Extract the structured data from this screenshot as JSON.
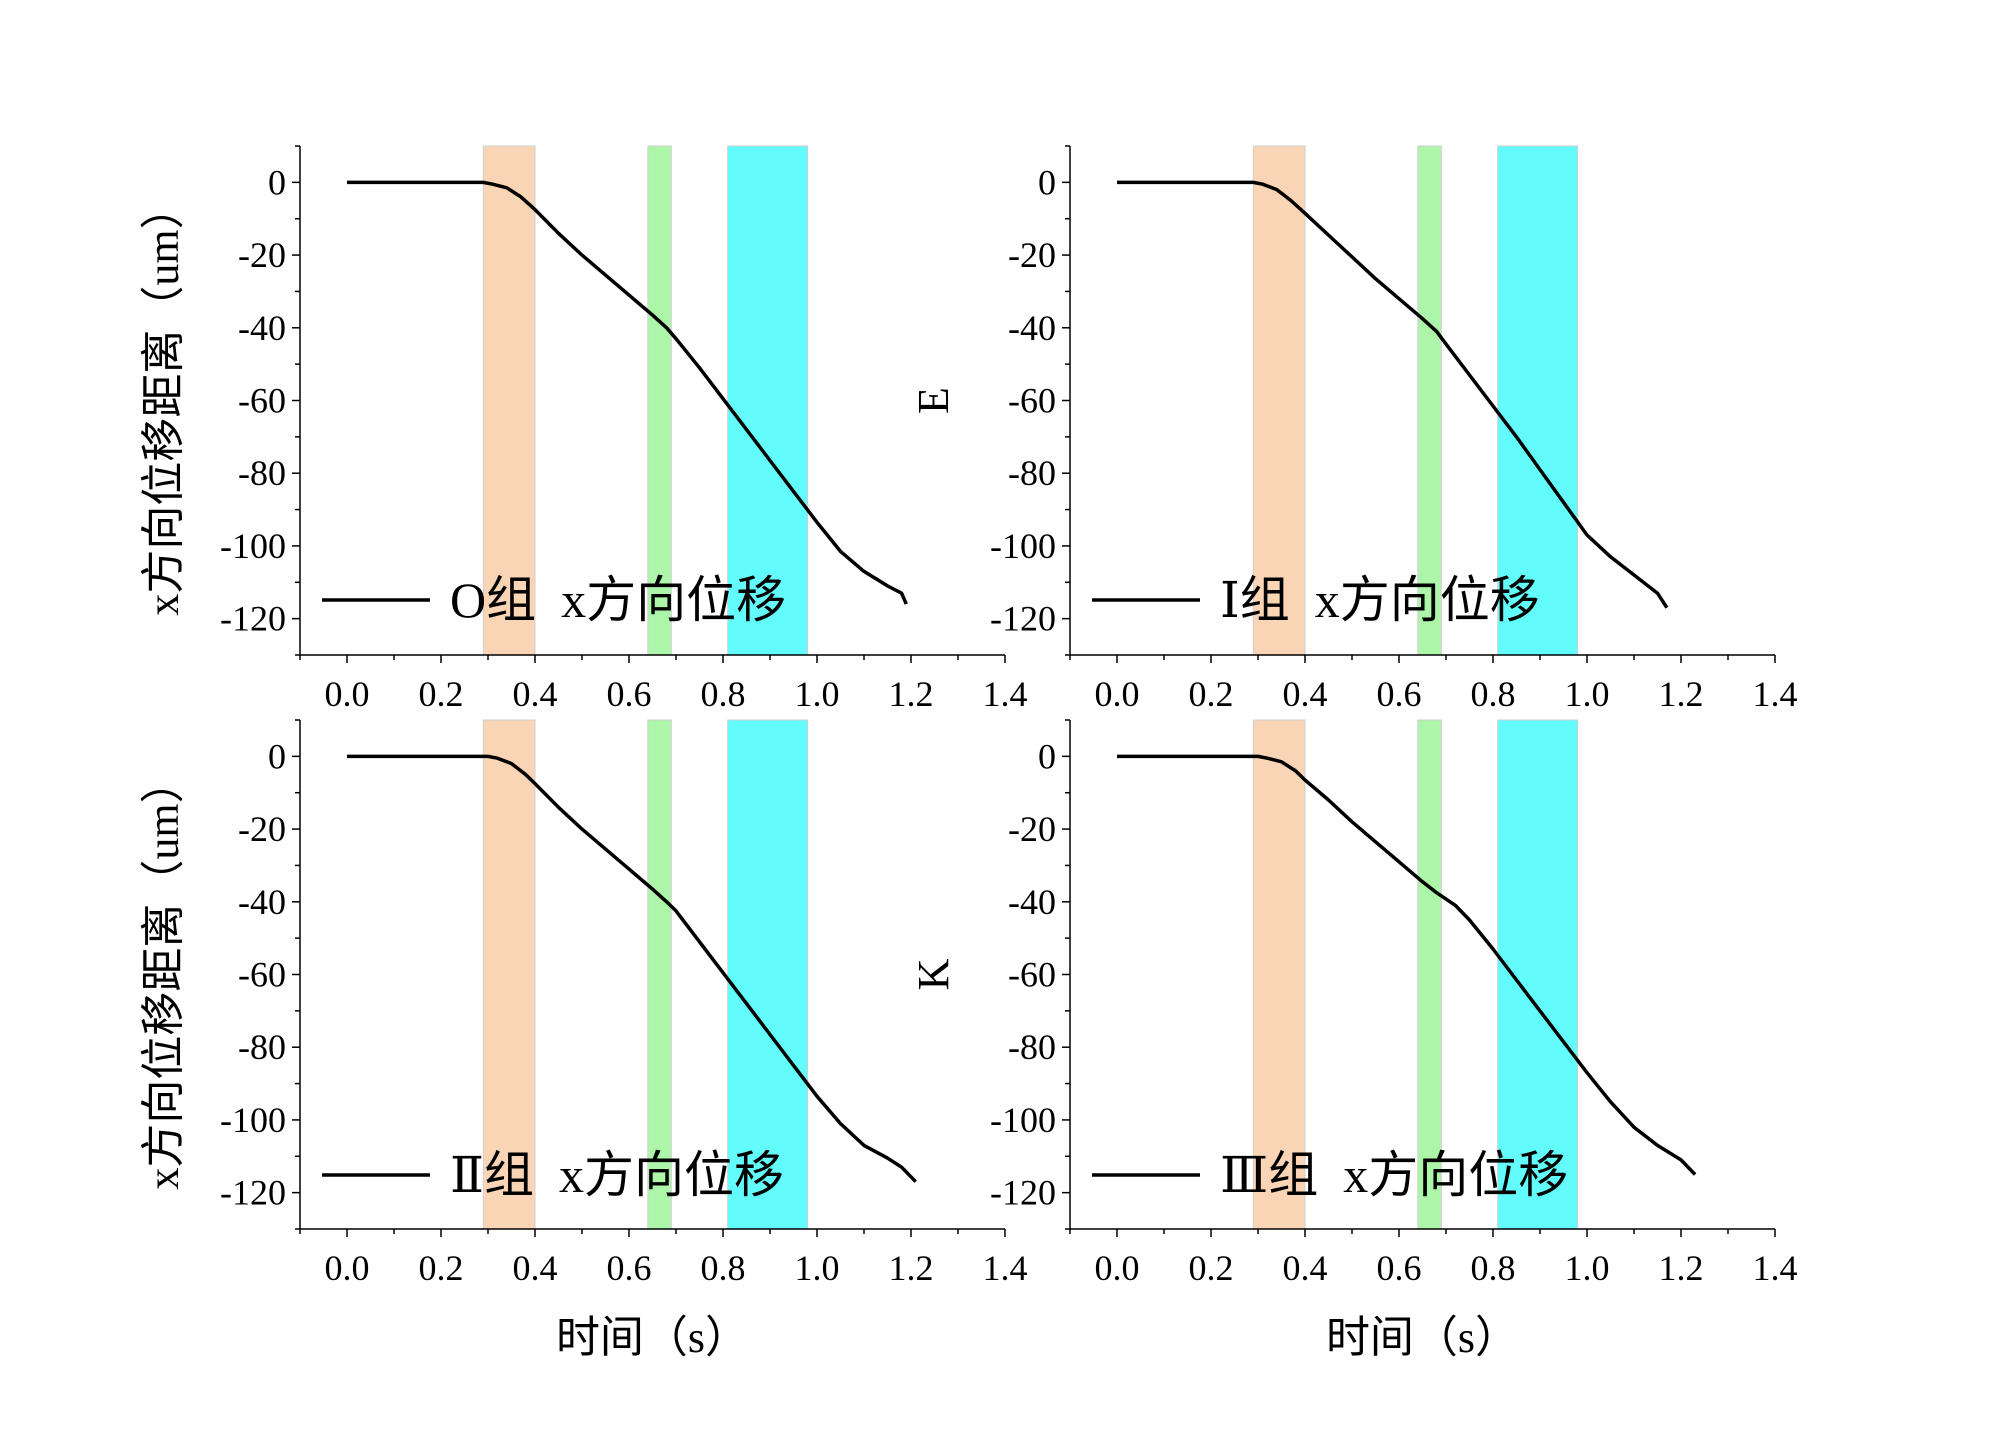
{
  "chart_data": [
    {
      "type": "line",
      "ylabel": "x方向位移距离（um）",
      "xlabel": "",
      "xlim": [
        -0.1,
        1.4
      ],
      "ylim": [
        -130,
        10
      ],
      "xticks": [
        "0.0",
        "0.2",
        "0.4",
        "0.6",
        "0.8",
        "1.0",
        "1.2",
        "1.4"
      ],
      "yticks": [
        "0",
        "-20",
        "-40",
        "-60",
        "-80",
        "-100",
        "-120"
      ],
      "legend_position": "bottom-left",
      "bands": [
        {
          "x": [
            0.29,
            0.4
          ],
          "color": "#f9d5b5"
        },
        {
          "x": [
            0.64,
            0.69
          ],
          "color": "#adf5a8"
        },
        {
          "x": [
            0.81,
            0.98
          ],
          "color": "#63fcfc"
        }
      ],
      "series": [
        {
          "name": "O组  x方向位移",
          "x": [
            0.0,
            0.1,
            0.2,
            0.29,
            0.31,
            0.34,
            0.37,
            0.4,
            0.45,
            0.5,
            0.55,
            0.6,
            0.65,
            0.68,
            0.7,
            0.75,
            0.8,
            0.85,
            0.9,
            0.95,
            1.0,
            1.05,
            1.1,
            1.15,
            1.18,
            1.19
          ],
          "y": [
            0,
            0,
            0,
            0,
            -0.5,
            -1.5,
            -4,
            -7.5,
            -14,
            -20,
            -25.5,
            -31,
            -36.5,
            -40,
            -43,
            -51,
            -59.5,
            -68,
            -76.5,
            -85,
            -93.5,
            -101.5,
            -107,
            -111,
            -113,
            -116
          ]
        }
      ]
    },
    {
      "type": "line",
      "ylabel": "E",
      "xlabel": "",
      "xlim": [
        -0.1,
        1.4
      ],
      "ylim": [
        -130,
        10
      ],
      "xticks": [
        "0.0",
        "0.2",
        "0.4",
        "0.6",
        "0.8",
        "1.0",
        "1.2",
        "1.4"
      ],
      "yticks": [
        "0",
        "-20",
        "-40",
        "-60",
        "-80",
        "-100",
        "-120"
      ],
      "legend_position": "bottom-left",
      "bands": [
        {
          "x": [
            0.29,
            0.4
          ],
          "color": "#f9d5b5"
        },
        {
          "x": [
            0.64,
            0.69
          ],
          "color": "#adf5a8"
        },
        {
          "x": [
            0.81,
            0.98
          ],
          "color": "#63fcfc"
        }
      ],
      "series": [
        {
          "name": "Ⅰ组  x方向位移",
          "x": [
            0.0,
            0.1,
            0.2,
            0.29,
            0.31,
            0.34,
            0.37,
            0.4,
            0.45,
            0.5,
            0.55,
            0.6,
            0.65,
            0.68,
            0.7,
            0.75,
            0.8,
            0.85,
            0.9,
            0.95,
            1.0,
            1.05,
            1.1,
            1.15,
            1.17
          ],
          "y": [
            0,
            0,
            0,
            0,
            -0.5,
            -2,
            -5,
            -8.5,
            -14.5,
            -20.5,
            -26.5,
            -32,
            -37.5,
            -41,
            -44.5,
            -53,
            -61.5,
            -70,
            -79,
            -88,
            -97,
            -103,
            -108,
            -113,
            -117
          ]
        }
      ]
    },
    {
      "type": "line",
      "ylabel": "x方向位移距离（um）",
      "xlabel": "时间（s）",
      "xlim": [
        -0.1,
        1.4
      ],
      "ylim": [
        -130,
        10
      ],
      "xticks": [
        "0.0",
        "0.2",
        "0.4",
        "0.6",
        "0.8",
        "1.0",
        "1.2",
        "1.4"
      ],
      "yticks": [
        "0",
        "-20",
        "-40",
        "-60",
        "-80",
        "-100",
        "-120"
      ],
      "legend_position": "bottom-left",
      "bands": [
        {
          "x": [
            0.29,
            0.4
          ],
          "color": "#f9d5b5"
        },
        {
          "x": [
            0.64,
            0.69
          ],
          "color": "#adf5a8"
        },
        {
          "x": [
            0.81,
            0.98
          ],
          "color": "#63fcfc"
        }
      ],
      "series": [
        {
          "name": "Ⅱ组  x方向位移",
          "x": [
            0.0,
            0.1,
            0.2,
            0.3,
            0.32,
            0.35,
            0.38,
            0.4,
            0.45,
            0.5,
            0.55,
            0.6,
            0.65,
            0.68,
            0.7,
            0.75,
            0.8,
            0.85,
            0.9,
            0.95,
            1.0,
            1.05,
            1.1,
            1.15,
            1.18,
            1.21
          ],
          "y": [
            0,
            0,
            0,
            0,
            -0.5,
            -2,
            -5,
            -7.5,
            -14,
            -20,
            -25.5,
            -31,
            -36.5,
            -40,
            -42.5,
            -51,
            -59.5,
            -68,
            -76.5,
            -85,
            -93.5,
            -101,
            -107,
            -110.5,
            -113,
            -117
          ]
        }
      ]
    },
    {
      "type": "line",
      "ylabel": "K",
      "xlabel": "时间（s）",
      "xlim": [
        -0.1,
        1.4
      ],
      "ylim": [
        -130,
        10
      ],
      "xticks": [
        "0.0",
        "0.2",
        "0.4",
        "0.6",
        "0.8",
        "1.0",
        "1.2",
        "1.4"
      ],
      "yticks": [
        "0",
        "-20",
        "-40",
        "-60",
        "-80",
        "-100",
        "-120"
      ],
      "legend_position": "bottom-left",
      "bands": [
        {
          "x": [
            0.29,
            0.4
          ],
          "color": "#f9d5b5"
        },
        {
          "x": [
            0.64,
            0.69
          ],
          "color": "#adf5a8"
        },
        {
          "x": [
            0.81,
            0.98
          ],
          "color": "#63fcfc"
        }
      ],
      "series": [
        {
          "name": "Ⅲ组  x方向位移",
          "x": [
            0.0,
            0.1,
            0.2,
            0.3,
            0.32,
            0.35,
            0.38,
            0.4,
            0.45,
            0.5,
            0.55,
            0.6,
            0.65,
            0.68,
            0.72,
            0.75,
            0.8,
            0.85,
            0.9,
            0.95,
            1.0,
            1.05,
            1.1,
            1.15,
            1.2,
            1.23
          ],
          "y": [
            0,
            0,
            0,
            0,
            -0.5,
            -1.5,
            -4,
            -6.5,
            -12,
            -18,
            -23.5,
            -29,
            -34.5,
            -37.5,
            -41,
            -45,
            -53,
            -61.5,
            -70,
            -78.5,
            -87,
            -95,
            -102,
            -107,
            -111,
            -115
          ]
        }
      ]
    }
  ]
}
